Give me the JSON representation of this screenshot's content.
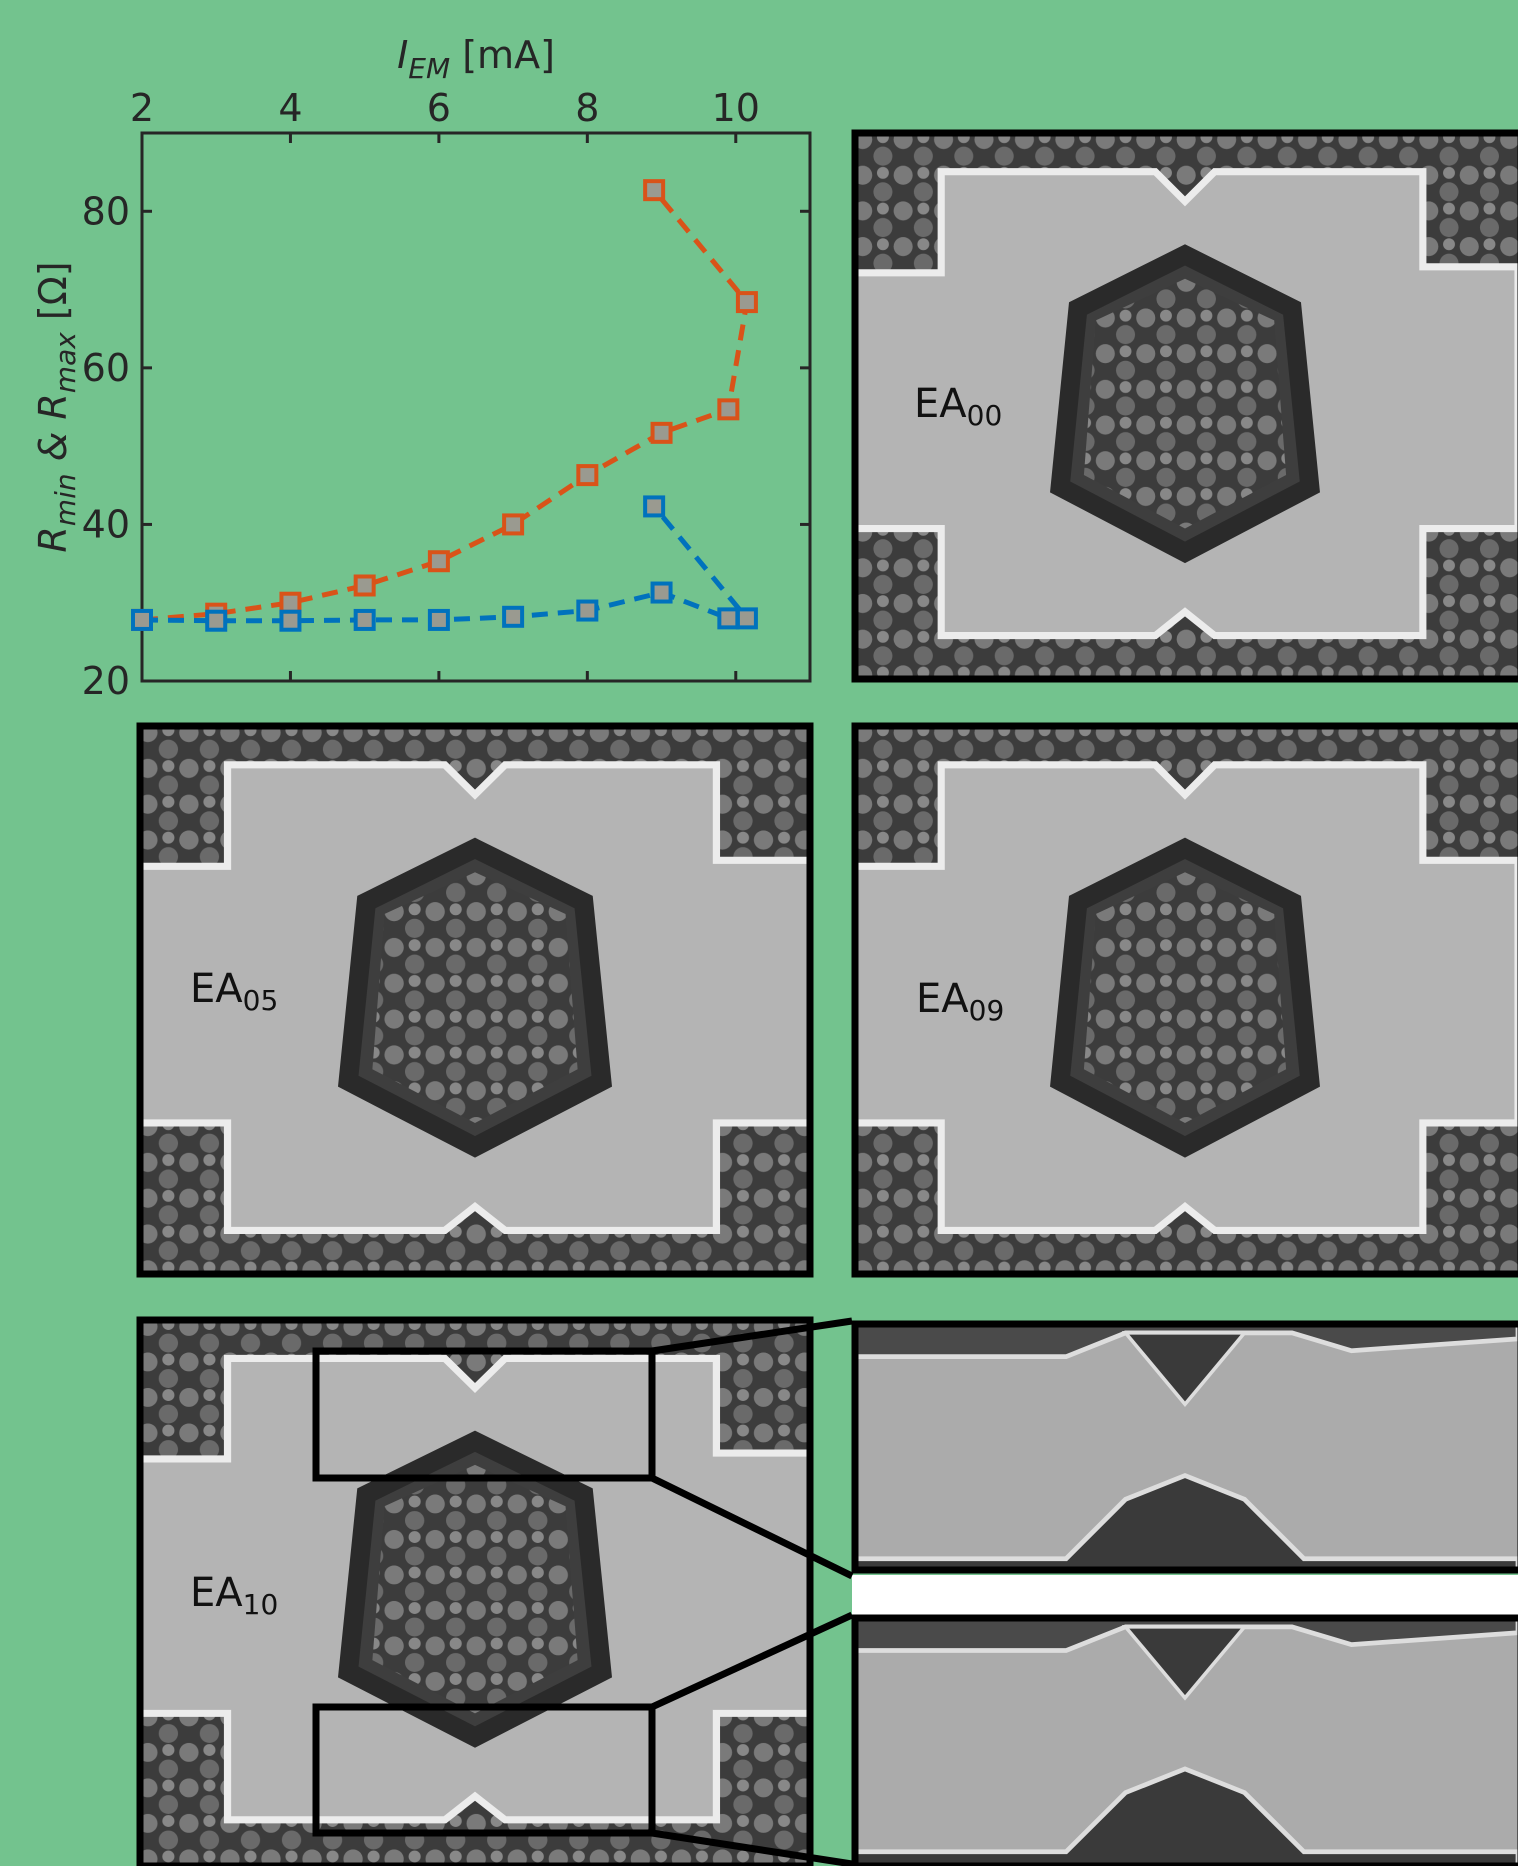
{
  "chart_data": {
    "type": "line",
    "xlabel": {
      "main": "I",
      "sub": "EM",
      "rest": " [mA]"
    },
    "ylabel": {
      "main1": "R",
      "sub1": "min",
      "mid": " & ",
      "main2": "R",
      "sub2": "max",
      "rest": " [Ω]"
    },
    "x": [
      2,
      3,
      4,
      5,
      6,
      7,
      8,
      9,
      9.9,
      10.15,
      8.9
    ],
    "series": [
      {
        "color": "#d95319",
        "values": [
          27.8,
          28.6,
          30,
          32.2,
          35.3,
          40,
          46.3,
          51.7,
          54.7,
          68.4,
          82.7
        ]
      },
      {
        "color": "#0072bd",
        "values": [
          27.8,
          27.7,
          27.7,
          27.8,
          27.8,
          28.2,
          29,
          31.3,
          28,
          28,
          42.3
        ]
      }
    ],
    "marker_face_color": "#9a9a90",
    "xlim": [
      2,
      11
    ],
    "xticks": [
      2,
      4,
      6,
      8,
      10
    ],
    "ylim": [
      20,
      90
    ],
    "yticks": [
      20,
      40,
      60,
      80
    ],
    "x_axis_position": "top"
  },
  "panels": [
    {
      "label": {
        "base": "EA",
        "sub": "00"
      }
    },
    {
      "label": {
        "base": "EA",
        "sub": "05"
      }
    },
    {
      "label": {
        "base": "EA",
        "sub": "09"
      }
    },
    {
      "label": {
        "base": "EA",
        "sub": "10"
      }
    }
  ]
}
